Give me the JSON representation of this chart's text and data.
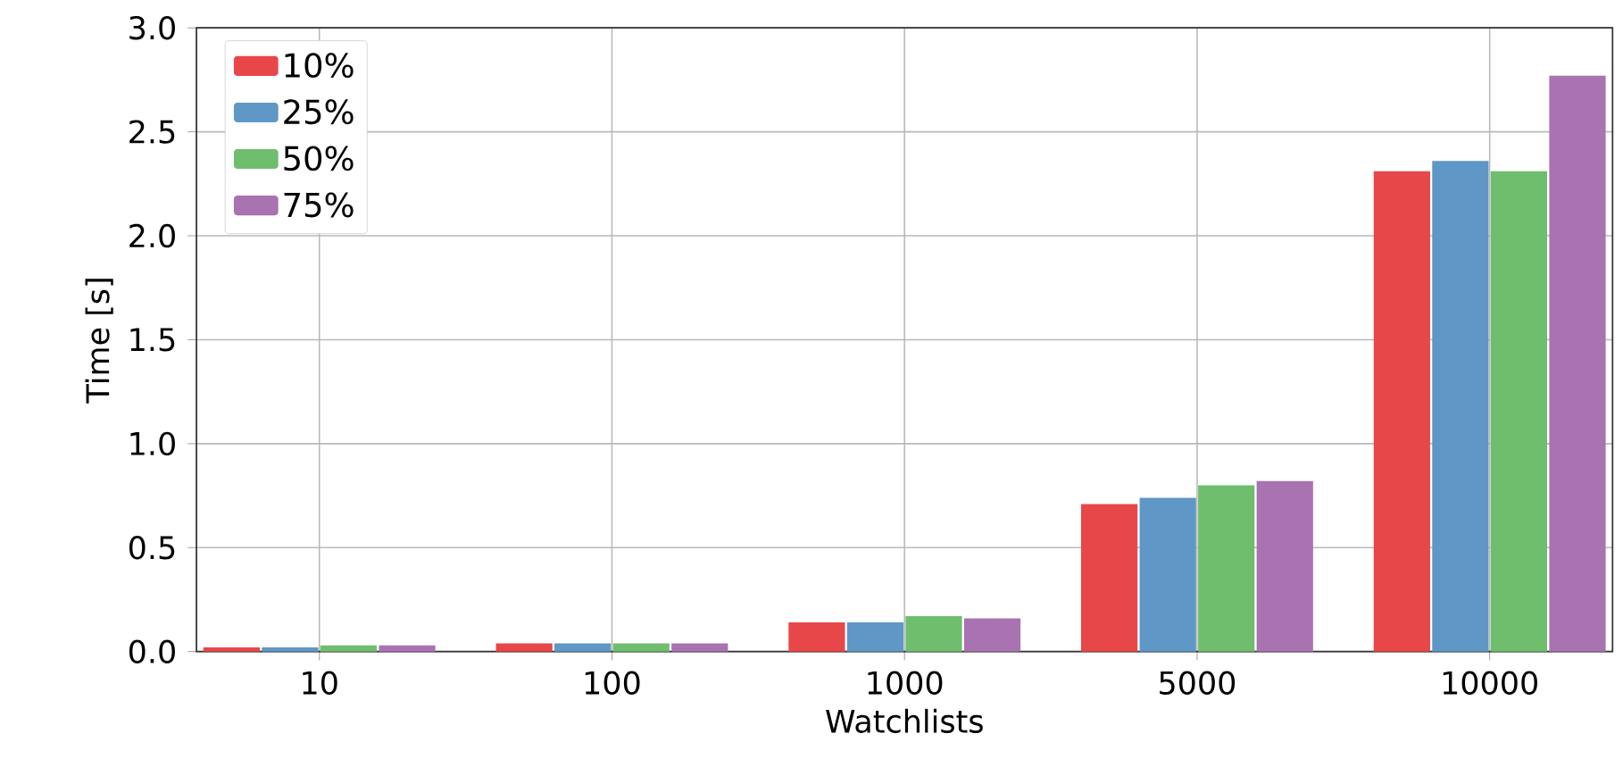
{
  "chart_data": {
    "type": "bar",
    "xlabel": "Watchlists",
    "ylabel": "Time [s]",
    "categories": [
      "10",
      "100",
      "1000",
      "5000",
      "10000"
    ],
    "series": [
      {
        "name": "10%",
        "color": "#e8474a",
        "values": [
          0.02,
          0.04,
          0.14,
          0.71,
          2.31
        ]
      },
      {
        "name": "25%",
        "color": "#5f97c6",
        "values": [
          0.02,
          0.04,
          0.14,
          0.74,
          2.36
        ]
      },
      {
        "name": "50%",
        "color": "#6fbe6d",
        "values": [
          0.03,
          0.04,
          0.17,
          0.8,
          2.31
        ]
      },
      {
        "name": "75%",
        "color": "#a972b1",
        "values": [
          0.03,
          0.04,
          0.16,
          0.82,
          2.77
        ]
      }
    ],
    "ylim": [
      0,
      3.0
    ],
    "yticks": [
      {
        "value": 0,
        "label": "0.0"
      },
      {
        "value": 0.5,
        "label": "0.5"
      },
      {
        "value": 1,
        "label": "1.0"
      },
      {
        "value": 1.5,
        "label": "1.5"
      },
      {
        "value": 2,
        "label": "2.0"
      },
      {
        "value": 2.5,
        "label": "2.5"
      },
      {
        "value": 3,
        "label": "3.0"
      }
    ],
    "grid": true,
    "legend": "top left"
  }
}
